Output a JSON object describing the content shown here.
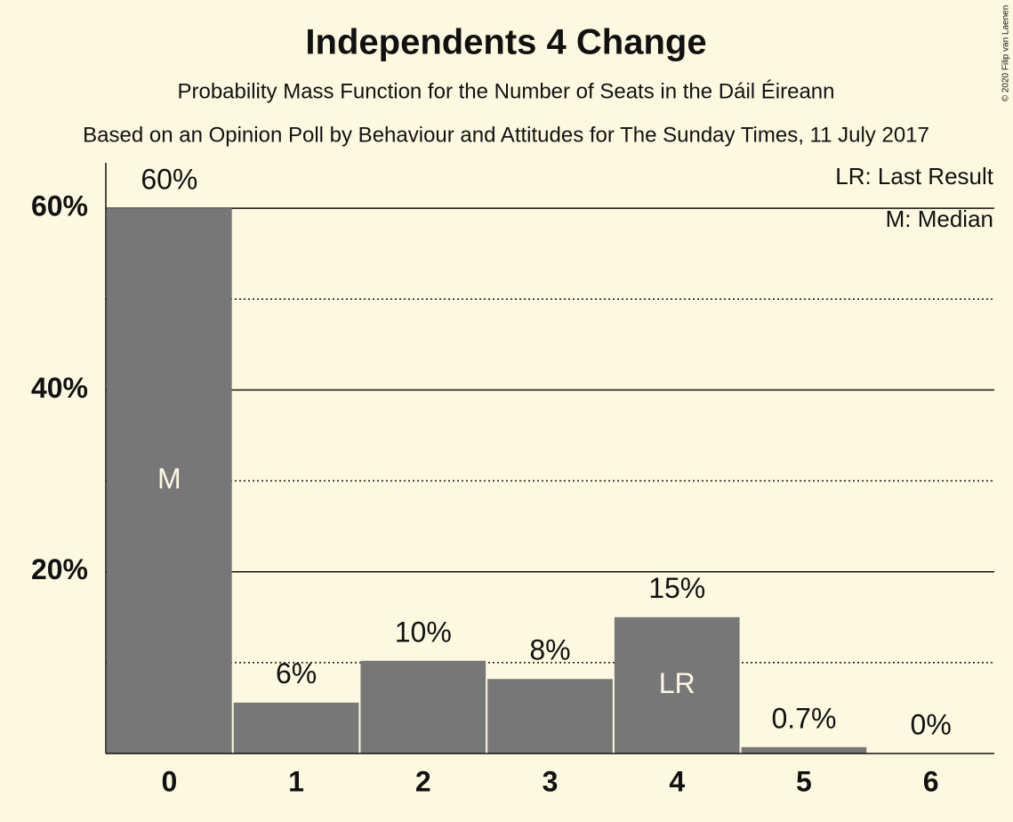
{
  "chart_data": {
    "type": "bar",
    "title": "Independents 4 Change",
    "subtitle": "Probability Mass Function for the Number of Seats in the Dáil Éireann",
    "source": "Based on an Opinion Poll by Behaviour and Attitudes for The Sunday Times, 11 July 2017",
    "copyright": "© 2020 Filip van Laenen",
    "legend": [
      "LR: Last Result",
      "M: Median"
    ],
    "categories": [
      "0",
      "1",
      "2",
      "3",
      "4",
      "5",
      "6"
    ],
    "values": [
      60,
      5.6,
      10.2,
      8.2,
      15,
      0.7,
      0
    ],
    "value_labels": [
      "60%",
      "6%",
      "10%",
      "8%",
      "15%",
      "0.7%",
      "0%"
    ],
    "bar_annotations": [
      "M",
      null,
      null,
      null,
      "LR",
      null,
      null
    ],
    "color": "#777777",
    "ylim": [
      0,
      65
    ],
    "yticks": [
      {
        "value": 20,
        "label": "20%"
      },
      {
        "value": 40,
        "label": "40%"
      },
      {
        "value": 60,
        "label": "60%"
      }
    ],
    "minor_yticks": [
      10,
      30,
      50
    ],
    "grid": true
  }
}
